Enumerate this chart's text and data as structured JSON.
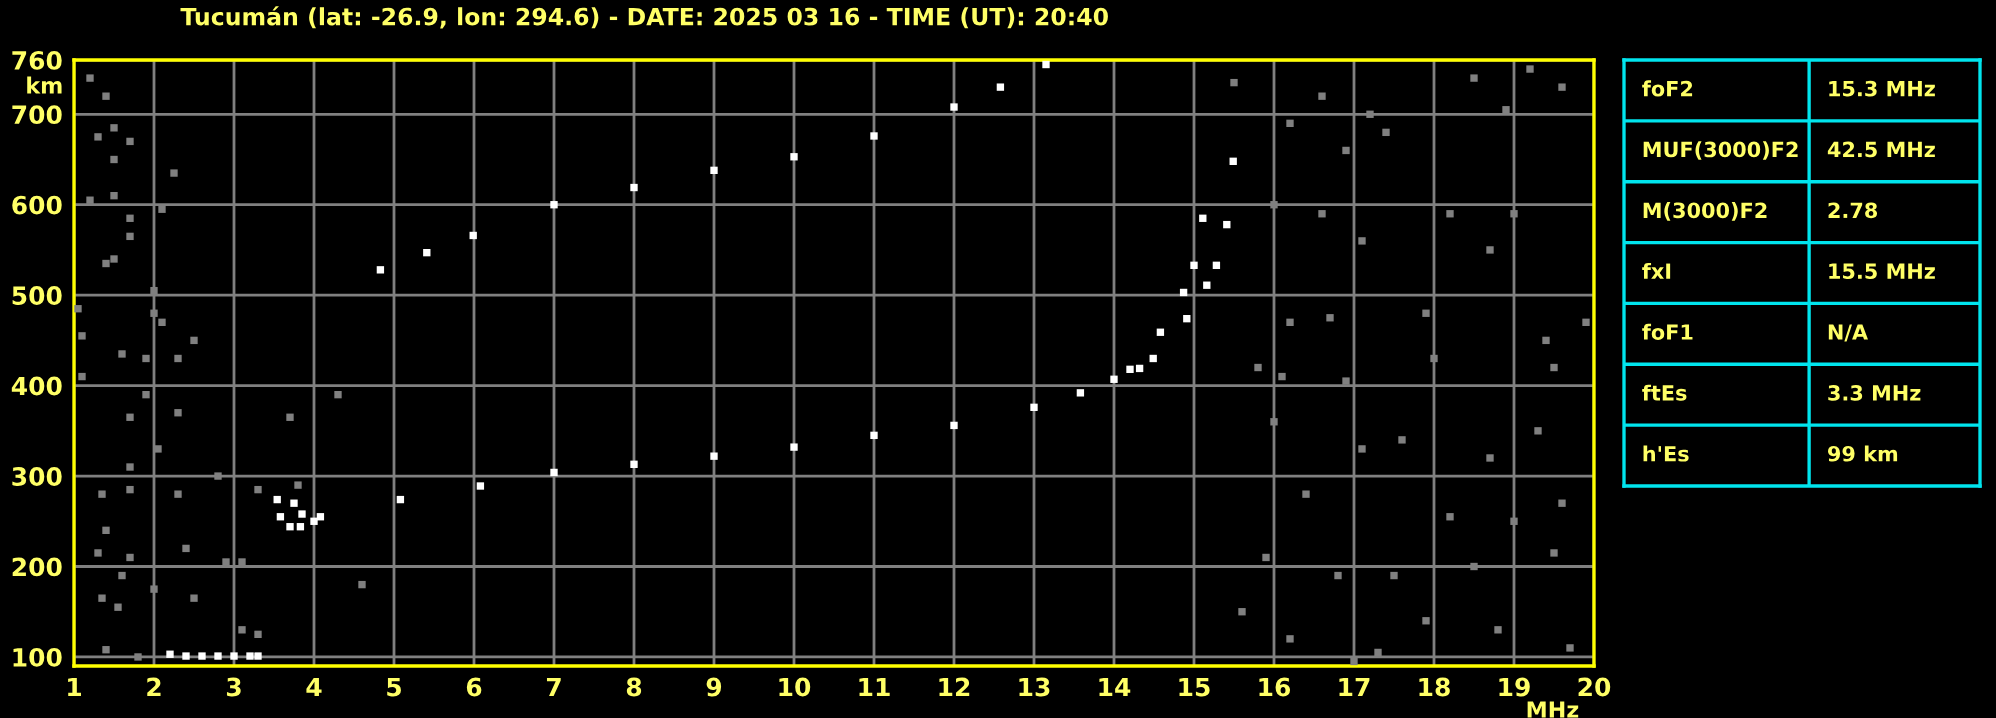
{
  "chart_data": [
    {
      "type": "scatter",
      "title": "Tucumán (lat: -26.9, lon: 294.6) - DATE: 2025 03 16 - TIME (UT): 20:40",
      "xlabel": "MHz",
      "ylabel": "km",
      "xlim": [
        1,
        20
      ],
      "ylim": [
        90,
        760
      ],
      "xticks": [
        1,
        2,
        3,
        4,
        5,
        6,
        7,
        8,
        9,
        10,
        11,
        12,
        13,
        14,
        15,
        16,
        17,
        18,
        19,
        20
      ],
      "yticks": [
        100,
        200,
        300,
        400,
        500,
        600,
        700,
        760
      ],
      "grid": true,
      "marker": "square",
      "series": [
        {
          "color": "#ffffff",
          "x": [
            3.54,
            3.58,
            3.7,
            3.83,
            4.08,
            5.08,
            6.08,
            7.0,
            8.0,
            9.0,
            10.0,
            11.0,
            12.0,
            13.0,
            13.58,
            14.0,
            14.2,
            14.58,
            14.87,
            15.0,
            15.11
          ],
          "values": [
            274,
            255,
            244,
            244,
            255,
            274,
            289,
            304,
            313,
            322,
            332,
            345,
            356,
            376,
            392,
            407,
            418,
            459,
            503,
            533,
            585
          ]
        },
        {
          "color": "#ffffff",
          "x": [
            3.75,
            3.85,
            4.0,
            14.32,
            14.49,
            14.91,
            15.16,
            15.28,
            15.41,
            15.49
          ],
          "values": [
            270,
            258,
            250,
            419,
            430,
            474,
            511,
            533,
            578,
            648
          ]
        },
        {
          "color": "#ffffff",
          "x": [
            4.83,
            5.41,
            5.99,
            7.0,
            8.0,
            9.0,
            10.0,
            11.0,
            12.0,
            12.58,
            13.15
          ],
          "values": [
            528,
            547,
            566,
            600,
            619,
            638,
            653,
            676,
            708,
            730,
            755
          ]
        },
        {
          "color": "#ffffff",
          "x": [
            2.2,
            2.4,
            2.6,
            2.8,
            3.0,
            3.2,
            3.3
          ],
          "values": [
            103,
            101,
            101,
            101,
            101,
            101,
            101
          ]
        },
        {
          "color": "#808080",
          "x": [
            1.2,
            1.4,
            1.5,
            1.3,
            1.7,
            1.5,
            1.2,
            1.5,
            1.7,
            2.1,
            2.25,
            2.0,
            1.7,
            1.5,
            1.4,
            1.05,
            1.1,
            1.1,
            1.6,
            1.9,
            2.0,
            2.1,
            2.5,
            2.3,
            1.9,
            2.3,
            1.7,
            2.05,
            1.7,
            1.35,
            1.7,
            2.3,
            2.8,
            3.3,
            3.7,
            4.3,
            1.4,
            1.3,
            1.7,
            2.4,
            3.8,
            4.6,
            1.6,
            1.35,
            1.55,
            2.0,
            2.5,
            3.1,
            3.3,
            1.8,
            1.4,
            2.9,
            3.1,
            15.5,
            16.2,
            16.6,
            16.9,
            17.2,
            17.4,
            18.5,
            19.2,
            19.6,
            18.9,
            16.0,
            16.6,
            17.1,
            18.2,
            19.0,
            18.7,
            16.2,
            16.7,
            17.9,
            19.4,
            19.9,
            15.8,
            16.1,
            16.9,
            18.0,
            19.5,
            16.0,
            17.1,
            17.6,
            18.7,
            19.3,
            16.4,
            18.2,
            19.0,
            19.6,
            15.9,
            16.8,
            17.5,
            18.5,
            19.5,
            16.2,
            17.3,
            17.9,
            18.8,
            19.7,
            15.6,
            17.0
          ],
          "values": [
            740,
            720,
            685,
            675,
            670,
            650,
            605,
            610,
            585,
            595,
            635,
            505,
            565,
            540,
            535,
            485,
            455,
            410,
            435,
            430,
            480,
            470,
            450,
            430,
            390,
            370,
            365,
            330,
            310,
            280,
            285,
            280,
            300,
            285,
            365,
            390,
            240,
            215,
            210,
            220,
            290,
            180,
            190,
            165,
            155,
            175,
            165,
            130,
            125,
            100,
            108,
            205,
            205,
            735,
            690,
            720,
            660,
            700,
            680,
            740,
            750,
            730,
            705,
            600,
            590,
            560,
            590,
            590,
            550,
            470,
            475,
            480,
            450,
            470,
            420,
            410,
            405,
            430,
            420,
            360,
            330,
            340,
            320,
            350,
            280,
            255,
            250,
            270,
            210,
            190,
            190,
            200,
            215,
            120,
            105,
            140,
            130,
            110,
            150,
            95
          ]
        }
      ]
    },
    {
      "type": "other",
      "annotations": [
        "foF2",
        "15.3 MHz",
        "MUF(3000)F2",
        "42.5 MHz",
        "M(3000)F2",
        "2.78",
        "fxI",
        "15.5 MHz",
        "foF1",
        "N/A",
        "ftEs",
        "3.3 MHz",
        "h'Es",
        "99 km"
      ]
    }
  ]
}
